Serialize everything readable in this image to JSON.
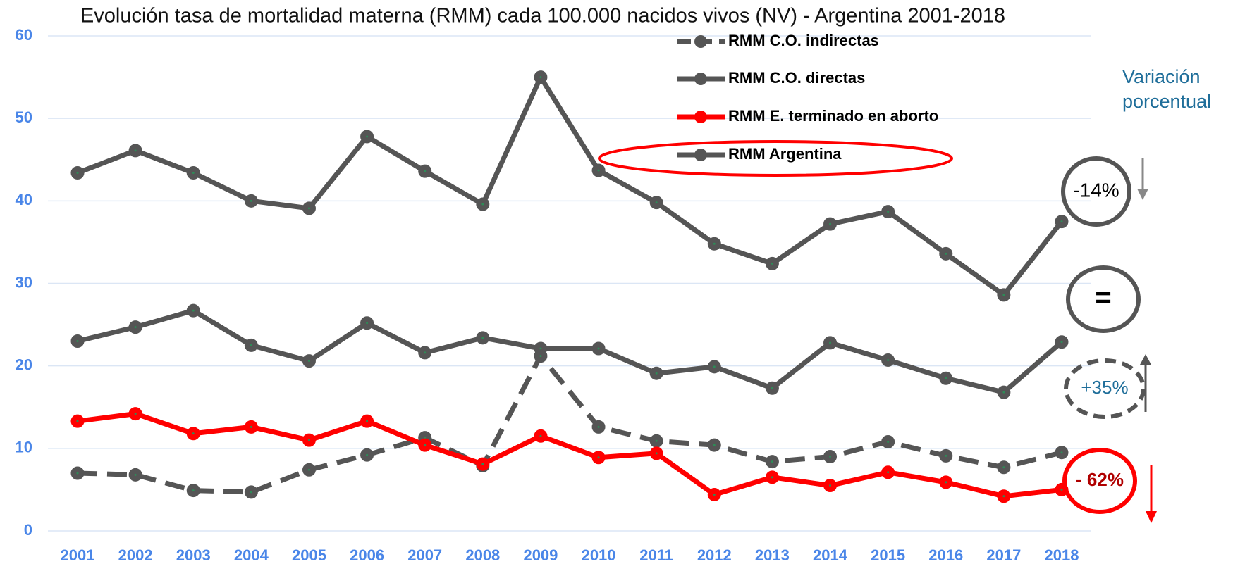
{
  "chart_data": {
    "type": "line",
    "title": "Evolución tasa de mortalidad materna (RMM) cada 100.000 nacidos vivos (NV) - Argentina 2001-2018",
    "categories": [
      "2001",
      "2002",
      "2003",
      "2004",
      "2005",
      "2006",
      "2007",
      "2008",
      "2009",
      "2010",
      "2011",
      "2012",
      "2013",
      "2014",
      "2015",
      "2016",
      "2017",
      "2018"
    ],
    "series": [
      {
        "name": "RMM C.O. indirectas",
        "color": "#555555",
        "line_style": "dashed",
        "values": [
          7.0,
          6.8,
          4.9,
          4.7,
          7.4,
          9.2,
          11.3,
          7.9,
          21.2,
          12.6,
          10.9,
          10.4,
          8.4,
          9.0,
          10.8,
          9.1,
          7.7,
          9.5
        ]
      },
      {
        "name": "RMM C.O. directas",
        "color": "#555555",
        "line_style": "solid",
        "values": [
          23.0,
          24.7,
          26.7,
          22.5,
          20.6,
          25.2,
          21.6,
          23.4,
          22.1,
          22.1,
          19.1,
          19.9,
          17.3,
          22.8,
          20.7,
          18.5,
          16.8,
          22.9
        ]
      },
      {
        "name": "RMM E. terminado en aborto",
        "color": "#ff0000",
        "line_style": "solid",
        "values": [
          13.3,
          14.2,
          11.8,
          12.6,
          11.0,
          13.3,
          10.4,
          8.1,
          11.5,
          8.9,
          9.4,
          4.4,
          6.5,
          5.5,
          7.1,
          5.9,
          4.2,
          5.0
        ]
      },
      {
        "name": "RMM Argentina",
        "color": "#555555",
        "line_style": "solid",
        "values": [
          43.4,
          46.1,
          43.4,
          40.0,
          39.1,
          47.8,
          43.6,
          39.6,
          55.0,
          43.7,
          39.8,
          34.8,
          32.4,
          37.2,
          38.7,
          33.6,
          28.6,
          37.5
        ]
      }
    ],
    "ylim": [
      0,
      60
    ],
    "yticks": [
      0,
      10,
      20,
      30,
      40,
      50,
      60
    ],
    "grid": true,
    "side_title": [
      "Variación",
      "porcentual"
    ],
    "annotations": [
      "-14%",
      "=",
      "+35%",
      "- 62%"
    ]
  }
}
